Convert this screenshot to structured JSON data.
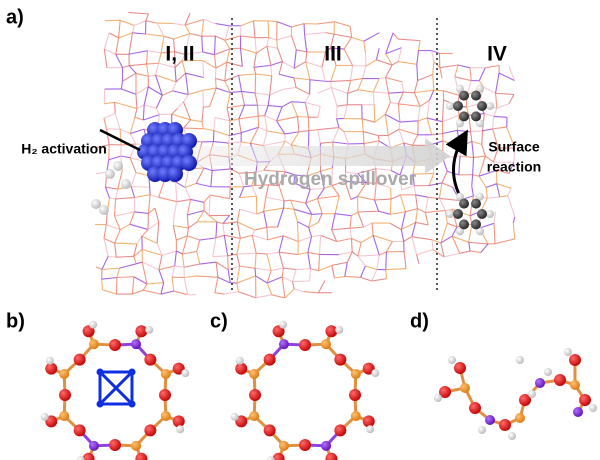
{
  "panels": {
    "a": {
      "label": "a)",
      "regions": [
        "I, II",
        "III",
        "IV"
      ],
      "activation": "H₂ activation",
      "spillover": "Hydrogen spillover",
      "reaction": [
        "Surface",
        "reaction"
      ]
    },
    "b": {
      "label": "b)"
    },
    "c": {
      "label": "c)"
    },
    "d": {
      "label": "d)"
    }
  }
}
